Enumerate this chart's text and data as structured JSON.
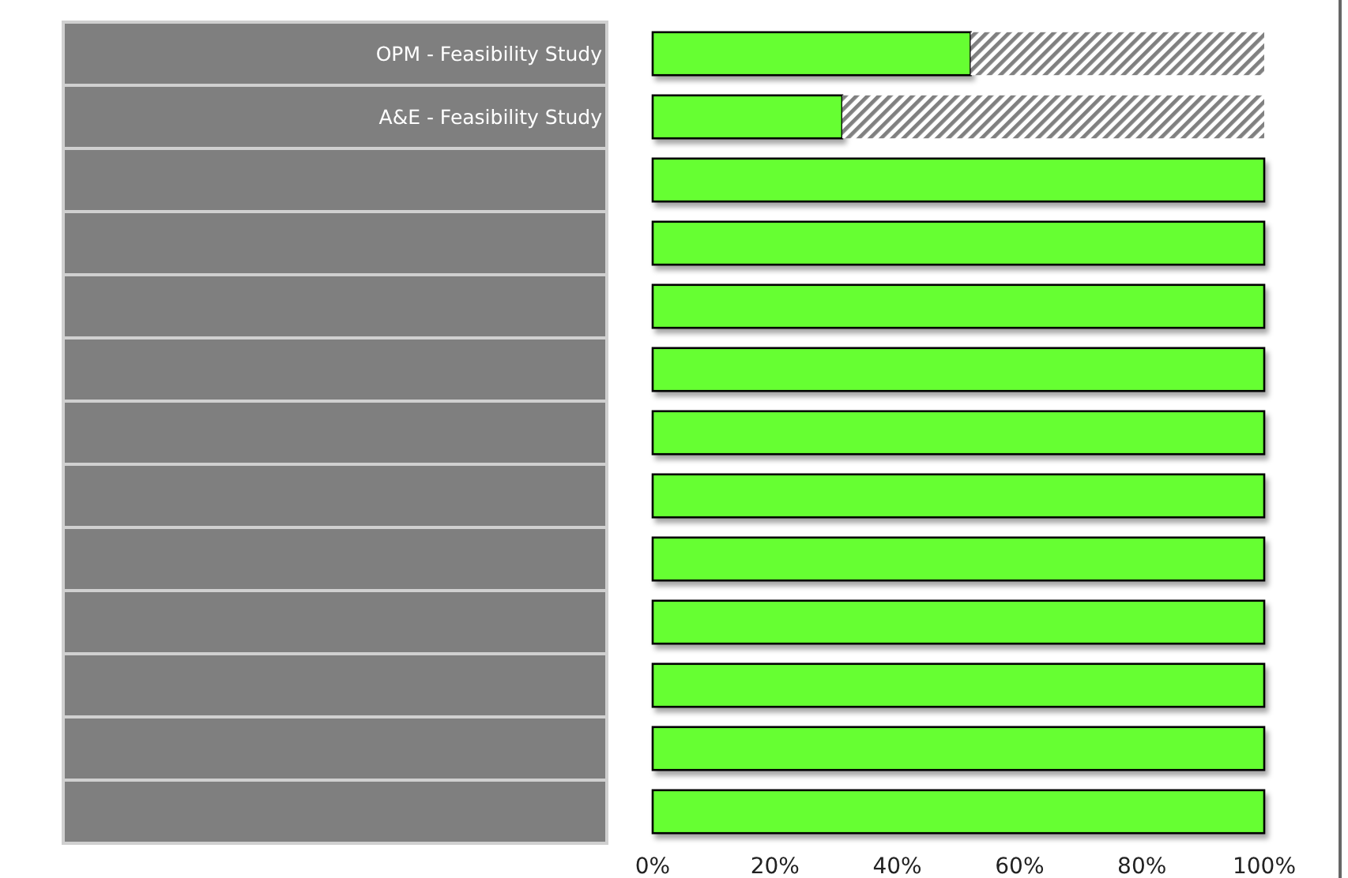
{
  "chart_data": {
    "type": "bar",
    "orientation": "horizontal",
    "stacked": true,
    "categories": [
      "OPM - Feasibility Study",
      "A&E - Feasibility Study",
      null,
      null,
      null,
      null,
      null,
      null,
      null,
      null,
      null,
      null,
      null
    ],
    "series": [
      {
        "color": "#66ff33",
        "values": [
          52,
          31,
          100,
          100,
          100,
          100,
          100,
          100,
          100,
          100,
          100,
          100,
          100
        ]
      },
      {
        "color": "#808080",
        "values": [
          48,
          69,
          0,
          0,
          0,
          0,
          0,
          0,
          0,
          0,
          0,
          0,
          0
        ]
      }
    ],
    "xlim": [
      0,
      100
    ],
    "xticks": [
      {
        "value": 0,
        "label": "0%"
      },
      {
        "value": 20,
        "label": "20%"
      },
      {
        "value": 40,
        "label": "40%"
      },
      {
        "value": 60,
        "label": "60%"
      },
      {
        "value": 80,
        "label": "80%"
      },
      {
        "value": 100,
        "label": "100%"
      }
    ],
    "grid": false
  }
}
